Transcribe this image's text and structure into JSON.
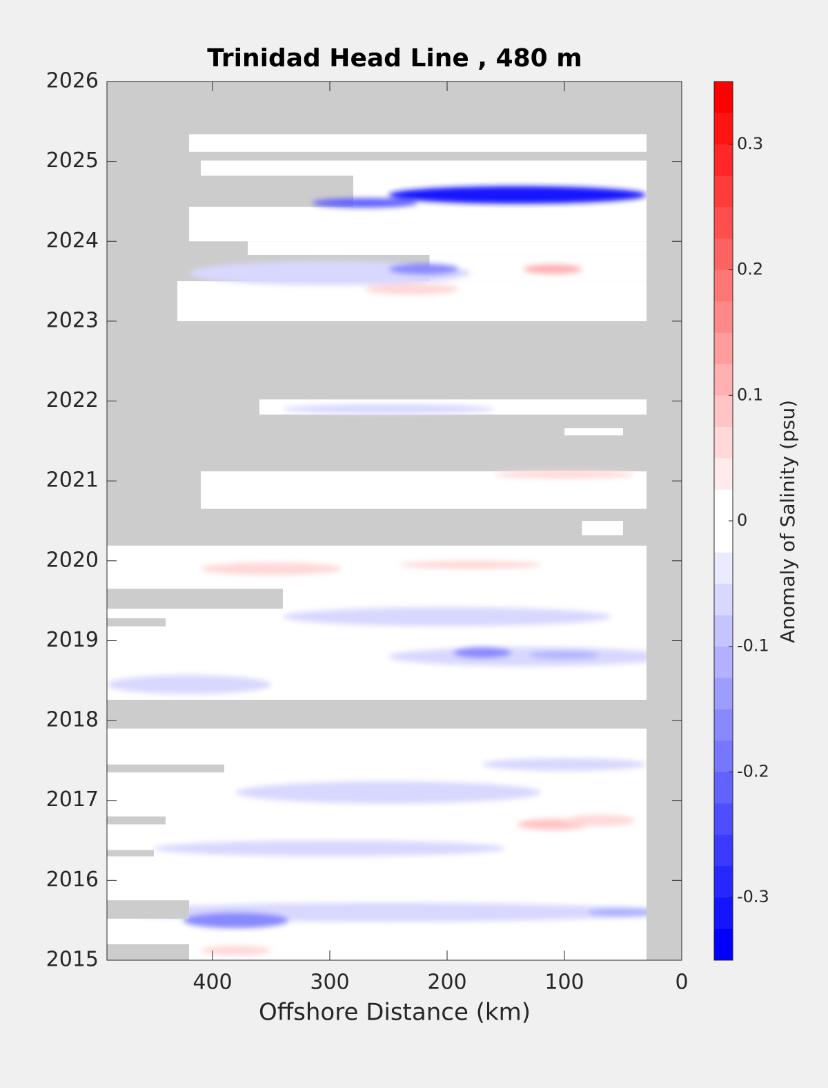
{
  "chart_data": {
    "type": "contour",
    "title": "Trinidad Head Line , 480 m",
    "x_label": "Offshore Distance (km)",
    "colorbar_label": "Anomaly of Salinity (psu)",
    "xlim": [
      490,
      0
    ],
    "ylim": [
      2015,
      2026
    ],
    "xticks": [
      400,
      300,
      200,
      100,
      0
    ],
    "yticks": [
      2015,
      2016,
      2017,
      2018,
      2019,
      2020,
      2021,
      2022,
      2023,
      2024,
      2025,
      2026
    ],
    "clim": [
      -0.35,
      0.35
    ],
    "cticks": [
      -0.3,
      -0.2,
      -0.1,
      0,
      0.1,
      0.2,
      0.3
    ],
    "level_step": 0.025,
    "negative_color": "#0000ff",
    "positive_color": "#ff0000",
    "no_data_color": "#cccccc",
    "coverage": [
      {
        "x": [
          420,
          30
        ],
        "y": [
          2025.12,
          2025.34
        ]
      },
      {
        "x": [
          410,
          30
        ],
        "y": [
          2024.82,
          2025.01
        ]
      },
      {
        "x": [
          280,
          30
        ],
        "y": [
          2024.43,
          2024.82
        ]
      },
      {
        "x": [
          420,
          30
        ],
        "y": [
          2024.0,
          2024.43
        ]
      },
      {
        "x": [
          370,
          30
        ],
        "y": [
          2023.83,
          2024.0
        ]
      },
      {
        "x": [
          215,
          30
        ],
        "y": [
          2023.5,
          2023.83
        ]
      },
      {
        "x": [
          430,
          30
        ],
        "y": [
          2023.0,
          2023.5
        ]
      },
      {
        "x": [
          360,
          30
        ],
        "y": [
          2021.83,
          2022.02
        ]
      },
      {
        "x": [
          100,
          50
        ],
        "y": [
          2021.57,
          2021.66
        ]
      },
      {
        "x": [
          410,
          30
        ],
        "y": [
          2020.65,
          2021.12
        ]
      },
      {
        "x": [
          85,
          50
        ],
        "y": [
          2020.32,
          2020.5
        ]
      },
      {
        "x": [
          490,
          30
        ],
        "y": [
          2018.26,
          2020.19
        ]
      },
      {
        "x": [
          490,
          30
        ],
        "y": [
          2015.0,
          2017.9
        ]
      }
    ],
    "gaps": [
      {
        "x": [
          490,
          340
        ],
        "y": [
          2019.4,
          2019.65
        ]
      },
      {
        "x": [
          490,
          440
        ],
        "y": [
          2019.18,
          2019.28
        ]
      },
      {
        "x": [
          490,
          390
        ],
        "y": [
          2017.35,
          2017.45
        ]
      },
      {
        "x": [
          490,
          440
        ],
        "y": [
          2016.7,
          2016.8
        ]
      },
      {
        "x": [
          490,
          450
        ],
        "y": [
          2016.3,
          2016.38
        ]
      },
      {
        "x": [
          490,
          420
        ],
        "y": [
          2015.52,
          2015.75
        ]
      },
      {
        "x": [
          490,
          420
        ],
        "y": [
          2015.0,
          2015.2
        ]
      }
    ],
    "anomalies": [
      {
        "x": 250,
        "y": 2017.1,
        "dx": 130,
        "dy": 0.14,
        "value": -0.05
      },
      {
        "x": 300,
        "y": 2016.4,
        "dx": 150,
        "dy": 0.1,
        "value": -0.05
      },
      {
        "x": 100,
        "y": 2017.45,
        "dx": 70,
        "dy": 0.08,
        "value": -0.05
      },
      {
        "x": 200,
        "y": 2019.3,
        "dx": 140,
        "dy": 0.12,
        "value": -0.05
      },
      {
        "x": 130,
        "y": 2018.8,
        "dx": 120,
        "dy": 0.12,
        "value": -0.05
      },
      {
        "x": 420,
        "y": 2018.45,
        "dx": 70,
        "dy": 0.12,
        "value": -0.05
      },
      {
        "x": 250,
        "y": 2015.6,
        "dx": 230,
        "dy": 0.12,
        "value": -0.05
      },
      {
        "x": 300,
        "y": 2023.6,
        "dx": 120,
        "dy": 0.15,
        "value": -0.05
      },
      {
        "x": 250,
        "y": 2021.9,
        "dx": 90,
        "dy": 0.06,
        "value": -0.07
      },
      {
        "x": 270,
        "y": 2024.48,
        "dx": 45,
        "dy": 0.06,
        "value": -0.2
      },
      {
        "x": 140,
        "y": 2024.58,
        "dx": 110,
        "dy": 0.11,
        "value": -0.3
      },
      {
        "x": 220,
        "y": 2023.65,
        "dx": 30,
        "dy": 0.07,
        "value": -0.15
      },
      {
        "x": 110,
        "y": 2023.65,
        "dx": 25,
        "dy": 0.06,
        "value": 0.1
      },
      {
        "x": 100,
        "y": 2021.08,
        "dx": 60,
        "dy": 0.05,
        "value": 0.07
      },
      {
        "x": 170,
        "y": 2018.85,
        "dx": 25,
        "dy": 0.07,
        "value": -0.15
      },
      {
        "x": 100,
        "y": 2018.82,
        "dx": 30,
        "dy": 0.05,
        "value": -0.1
      },
      {
        "x": 380,
        "y": 2015.5,
        "dx": 45,
        "dy": 0.1,
        "value": -0.15
      },
      {
        "x": 50,
        "y": 2015.6,
        "dx": 30,
        "dy": 0.06,
        "value": -0.12
      },
      {
        "x": 110,
        "y": 2016.7,
        "dx": 30,
        "dy": 0.07,
        "value": 0.08
      },
      {
        "x": 70,
        "y": 2016.75,
        "dx": 30,
        "dy": 0.07,
        "value": 0.06
      },
      {
        "x": 380,
        "y": 2015.12,
        "dx": 30,
        "dy": 0.06,
        "value": 0.06
      },
      {
        "x": 350,
        "y": 2019.9,
        "dx": 60,
        "dy": 0.08,
        "value": 0.05
      },
      {
        "x": 180,
        "y": 2019.95,
        "dx": 60,
        "dy": 0.05,
        "value": 0.05
      },
      {
        "x": 230,
        "y": 2023.4,
        "dx": 40,
        "dy": 0.07,
        "value": 0.05
      }
    ]
  }
}
